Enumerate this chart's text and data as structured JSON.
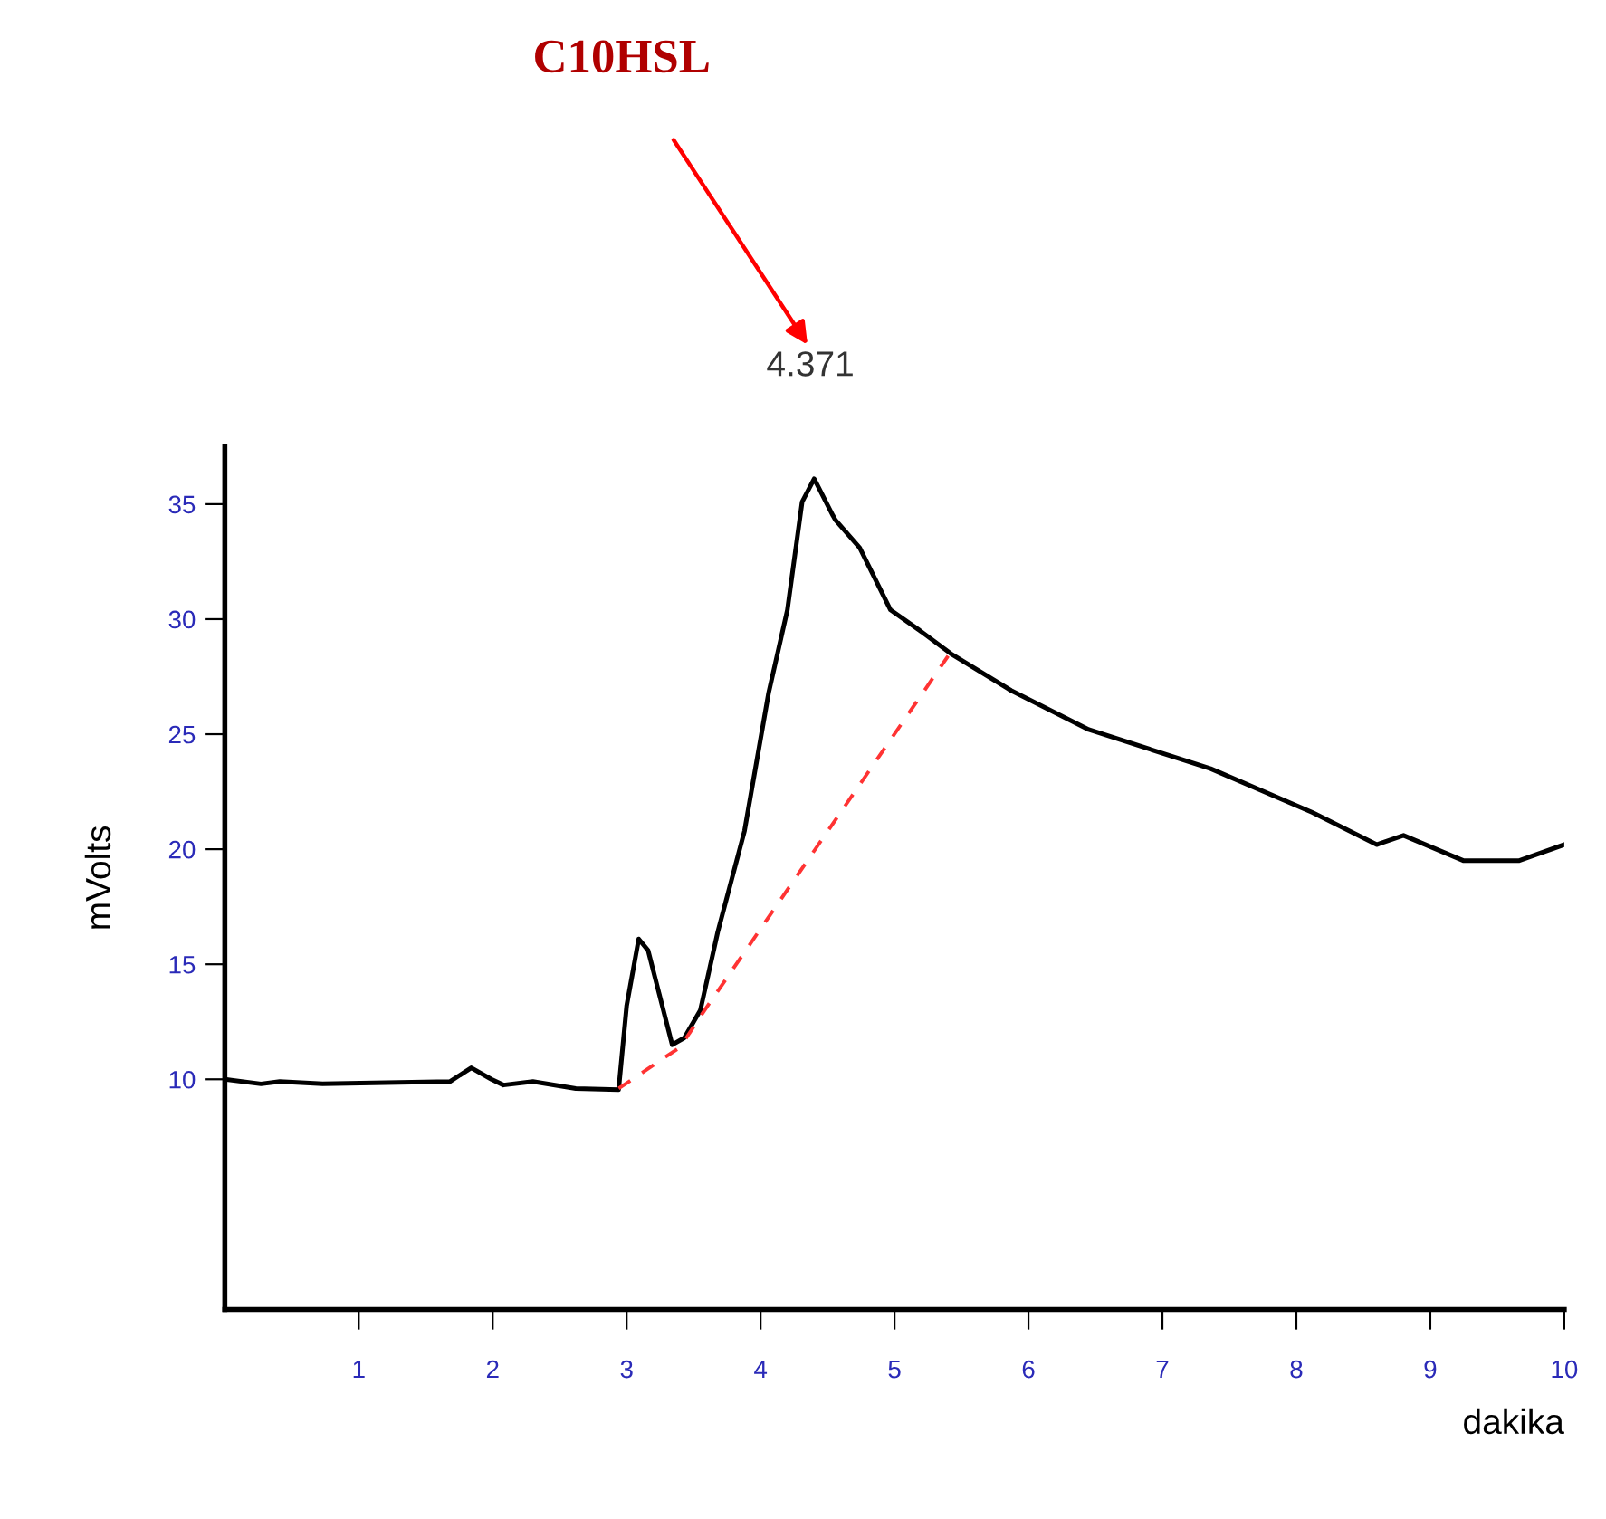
{
  "chart_data": {
    "type": "line",
    "xlabel": "dakika",
    "ylabel": "mVolts",
    "xlim": [
      0,
      10
    ],
    "xticks": [
      1,
      2,
      3,
      4,
      5,
      6,
      7,
      8,
      9,
      10
    ],
    "ylim": [
      0,
      37.5
    ],
    "yticks": [
      10,
      15,
      20,
      25,
      30,
      35
    ],
    "grid": false,
    "legend": false,
    "marker": "none",
    "series": [
      {
        "color": "#000000",
        "line_style": "solid",
        "x": [
          0,
          0.27,
          0.41,
          0.73,
          1.68,
          1.84,
          1.99,
          2.08,
          2.3,
          2.62,
          2.94,
          3.0,
          3.09,
          3.16,
          3.34,
          3.43,
          3.55,
          3.68,
          3.88,
          4.06,
          4.2,
          4.31,
          4.4,
          4.54,
          4.56,
          4.74,
          4.97,
          5.19,
          5.42,
          5.87,
          6.45,
          7.36,
          8.12,
          8.6,
          8.8,
          9.25,
          9.66,
          10.0
        ],
        "values": [
          10.0,
          9.8,
          9.9,
          9.8,
          9.9,
          10.5,
          10.0,
          9.75,
          9.9,
          9.6,
          9.55,
          13.2,
          16.1,
          15.6,
          11.5,
          11.8,
          13.0,
          16.4,
          20.8,
          26.8,
          30.4,
          35.1,
          36.1,
          34.5,
          34.3,
          33.1,
          30.4,
          29.5,
          28.5,
          26.9,
          25.2,
          23.5,
          21.6,
          20.2,
          20.6,
          19.5,
          19.5,
          20.2
        ]
      },
      {
        "color": "#ff3333",
        "line_style": "dashed",
        "x": [
          2.94,
          3.4,
          3.57,
          5.4
        ],
        "values": [
          9.6,
          11.4,
          12.9,
          28.4
        ]
      }
    ],
    "annotations": [
      {
        "text": "4.371",
        "x": 4.371,
        "y": 36.1
      },
      "C10HSL"
    ]
  }
}
